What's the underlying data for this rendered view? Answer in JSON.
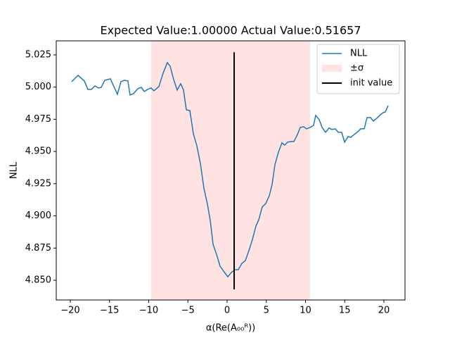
{
  "chart_data": {
    "type": "line",
    "title": "Expected Value:1.00000 Actual Value:0.51657",
    "xlabel": "α(Re(A₀₀ᴿ))",
    "ylabel": "NLL",
    "xlim": [
      -21.79,
      22.69
    ],
    "ylim": [
      4.8347,
      5.0359
    ],
    "xticks": [
      {
        "value": -20,
        "label": "−20"
      },
      {
        "value": -15,
        "label": "−15"
      },
      {
        "value": -10,
        "label": "−10"
      },
      {
        "value": -5,
        "label": "−5"
      },
      0,
      5,
      10,
      15,
      20
    ],
    "yticks": [
      {
        "value": 4.85,
        "label": "4.850"
      },
      {
        "value": 4.875,
        "label": "4.875"
      },
      {
        "value": 4.9,
        "label": "4.900"
      },
      {
        "value": 4.925,
        "label": "4.925"
      },
      {
        "value": 4.95,
        "label": "4.950"
      },
      {
        "value": 4.975,
        "label": "4.975"
      },
      {
        "value": 5.0,
        "label": "5.000"
      },
      {
        "value": 5.025,
        "label": "5.025"
      }
    ],
    "legend": "upper right",
    "series": [
      {
        "name": "NLL",
        "color": "#1f77b4",
        "x": [
          -19.82,
          -19.01,
          -18.21,
          -17.76,
          -17.31,
          -16.86,
          -16.41,
          -16.05,
          -15.61,
          -14.89,
          -13.99,
          -13.54,
          -13.09,
          -12.65,
          -12.38,
          -11.93,
          -11.39,
          -10.94,
          -10.58,
          -10.13,
          -9.69,
          -9.33,
          -8.7,
          -8.16,
          -7.62,
          -7.26,
          -6.82,
          -6.37,
          -5.92,
          -5.56,
          -5.2,
          -4.75,
          -4.3,
          -3.86,
          -3.41,
          -2.96,
          -2.51,
          -2.15,
          -1.79,
          -1.35,
          -0.9,
          -0.45,
          0.09,
          0.54,
          0.99,
          1.43,
          1.88,
          2.33,
          2.78,
          3.23,
          3.68,
          4.04,
          4.48,
          4.93,
          5.38,
          5.74,
          6.1,
          6.55,
          7.0,
          7.35,
          7.71,
          8.16,
          8.52,
          8.97,
          9.33,
          9.78,
          10.13,
          10.58,
          11.03,
          11.3,
          11.75,
          12.11,
          12.56,
          13.0,
          13.36,
          13.81,
          14.17,
          14.62,
          14.98,
          15.43,
          15.78,
          16.23,
          16.68,
          17.04,
          17.49,
          17.85,
          18.3,
          18.65,
          19.1,
          19.55,
          19.91,
          20.18,
          20.54
        ],
        "values": [
          5.0042,
          5.0091,
          5.0048,
          4.9982,
          4.9982,
          5.0009,
          4.9993,
          4.9998,
          5.0053,
          5.0064,
          4.9944,
          5.0042,
          5.0053,
          5.0048,
          4.9938,
          4.9949,
          4.9988,
          4.9998,
          4.9966,
          4.9982,
          4.9993,
          4.9971,
          5.0004,
          5.0108,
          5.019,
          5.0162,
          5.0059,
          4.9977,
          5.0026,
          4.9977,
          4.9823,
          4.9818,
          4.9637,
          4.9545,
          4.9408,
          4.9216,
          4.9091,
          4.8965,
          4.8779,
          4.8702,
          4.861,
          4.8571,
          4.8527,
          4.856,
          4.8582,
          4.8582,
          4.8631,
          4.8653,
          4.873,
          4.8817,
          4.8921,
          4.897,
          4.9069,
          4.9096,
          4.9156,
          4.9244,
          4.9397,
          4.9495,
          4.9567,
          4.955,
          4.9572,
          4.9577,
          4.9577,
          4.9632,
          4.9687,
          4.9692,
          4.9676,
          4.9687,
          4.9703,
          4.978,
          4.9747,
          4.9687,
          4.9649,
          4.9682,
          4.9671,
          4.9676,
          4.9649,
          4.9649,
          4.9572,
          4.9616,
          4.961,
          4.9632,
          4.9654,
          4.9676,
          4.9676,
          4.9763,
          4.9763,
          4.9736,
          4.9758,
          4.9785,
          4.9802,
          4.9807,
          4.9856
        ]
      }
    ],
    "span": {
      "name": "±σ",
      "color": "#ffc0c0",
      "x": [
        -9.69,
        10.58
      ]
    },
    "vline": {
      "name": "init value",
      "color": "#000000",
      "x": 0.9,
      "y": [
        4.843,
        5.027
      ]
    }
  }
}
